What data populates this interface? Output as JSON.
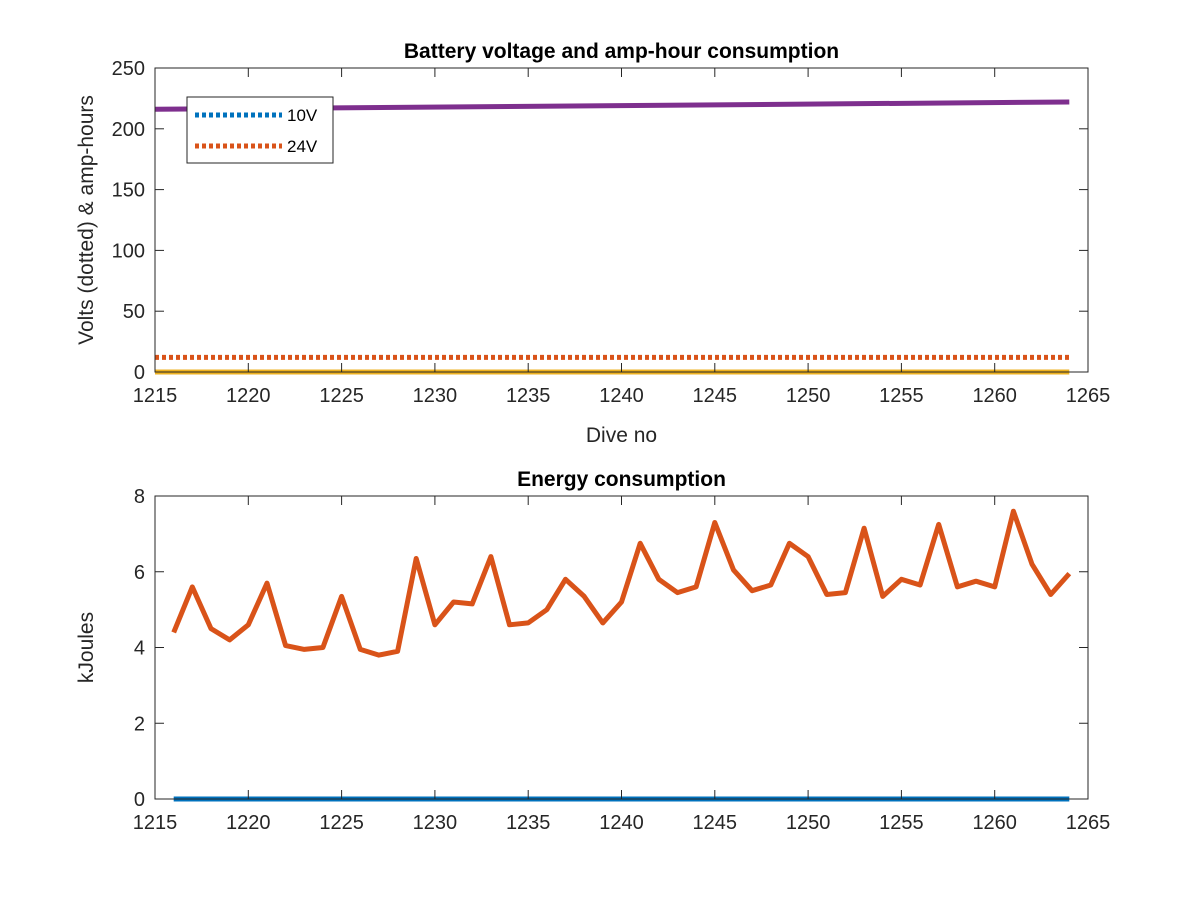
{
  "chart_data": [
    {
      "type": "line",
      "title": "Battery voltage and amp-hour consumption",
      "xlabel": "Dive no",
      "ylabel": "Volts (dotted) & amp-hours",
      "xlim": [
        1215,
        1265
      ],
      "ylim": [
        0,
        250
      ],
      "xticks": [
        1215,
        1220,
        1225,
        1230,
        1235,
        1240,
        1245,
        1250,
        1255,
        1260,
        1265
      ],
      "yticks": [
        0,
        50,
        100,
        150,
        200,
        250
      ],
      "grid": false,
      "legend": {
        "placement": "top-left",
        "entries": [
          "10V",
          "24V"
        ]
      },
      "series": [
        {
          "name": "10V",
          "style": "dotted",
          "color": "#0072BD",
          "x": [
            1215,
            1264
          ],
          "y": [
            0,
            0
          ]
        },
        {
          "name": "24V",
          "style": "dotted",
          "color": "#D95319",
          "x": [
            1215,
            1264
          ],
          "y": [
            12,
            12
          ]
        },
        {
          "style": "solid",
          "color": "#EDB120",
          "x": [
            1215,
            1264
          ],
          "y": [
            0,
            0
          ]
        },
        {
          "style": "solid",
          "color": "#7E2F8E",
          "x": [
            1215,
            1264
          ],
          "y": [
            216,
            222
          ]
        }
      ]
    },
    {
      "type": "line",
      "title": "Energy consumption",
      "xlabel": "",
      "ylabel": "kJoules",
      "xlim": [
        1215,
        1265
      ],
      "ylim": [
        0,
        8
      ],
      "xticks": [
        1215,
        1220,
        1225,
        1230,
        1235,
        1240,
        1245,
        1250,
        1255,
        1260,
        1265
      ],
      "yticks": [
        0,
        2,
        4,
        6,
        8
      ],
      "grid": false,
      "series": [
        {
          "style": "solid",
          "color": "#0072BD",
          "x": [
            1216,
            1264
          ],
          "y": [
            0,
            0
          ]
        },
        {
          "style": "solid",
          "color": "#D95319",
          "x": [
            1216,
            1217,
            1218,
            1219,
            1220,
            1221,
            1222,
            1223,
            1224,
            1225,
            1226,
            1227,
            1228,
            1229,
            1230,
            1231,
            1232,
            1233,
            1234,
            1235,
            1236,
            1237,
            1238,
            1239,
            1240,
            1241,
            1242,
            1243,
            1244,
            1245,
            1246,
            1247,
            1248,
            1249,
            1250,
            1251,
            1252,
            1253,
            1254,
            1255,
            1256,
            1257,
            1258,
            1259,
            1260,
            1261,
            1262,
            1263,
            1264
          ],
          "y": [
            4.4,
            5.6,
            4.5,
            4.2,
            4.6,
            5.7,
            4.05,
            3.95,
            4.0,
            5.35,
            3.95,
            3.8,
            3.9,
            6.35,
            4.6,
            5.2,
            5.15,
            6.4,
            4.6,
            4.65,
            5.0,
            5.8,
            5.35,
            4.65,
            5.2,
            6.75,
            5.8,
            5.45,
            5.6,
            7.3,
            6.05,
            5.5,
            5.65,
            6.75,
            6.4,
            5.4,
            5.45,
            7.15,
            5.35,
            5.8,
            5.65,
            7.25,
            5.6,
            5.75,
            5.6,
            7.6,
            6.2,
            5.4,
            5.95
          ]
        }
      ]
    }
  ]
}
